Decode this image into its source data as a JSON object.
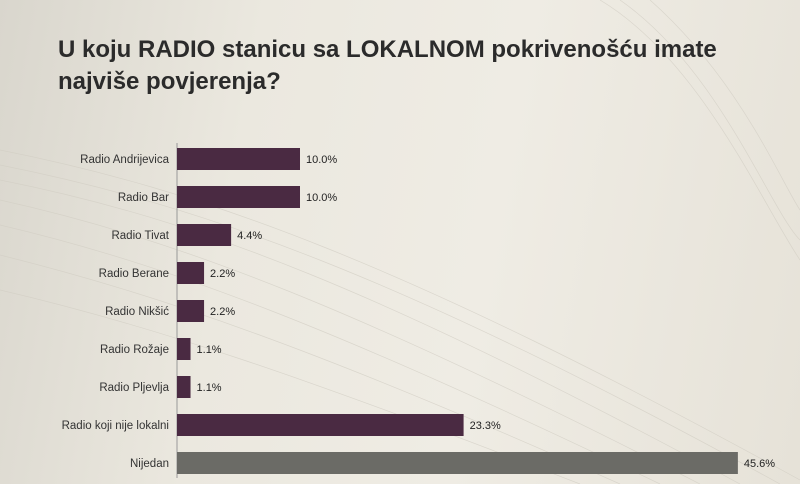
{
  "title": "U koju RADIO stanicu sa LOKALNOM pokrivenošću imate najviše povjerenja?",
  "colors": {
    "bar": "#4a2a42",
    "bar_highlight": "#6b6b66",
    "axis": "#999999"
  },
  "chart_data": {
    "type": "bar",
    "orientation": "horizontal",
    "title": "U koju RADIO stanicu sa LOKALNOM pokrivenošću imate najviše povjerenja?",
    "xlabel": "",
    "ylabel": "",
    "xlim": [
      0,
      50
    ],
    "grid": false,
    "categories": [
      "Radio Andrijevica",
      "Radio Bar",
      "Radio Tivat",
      "Radio Berane",
      "Radio Nikšić",
      "Radio Rožaje",
      "Radio Pljevlja",
      "Radio koji nije lokalni",
      "Nijedan"
    ],
    "values": [
      10.0,
      10.0,
      4.4,
      2.2,
      2.2,
      1.1,
      1.1,
      23.3,
      45.6
    ],
    "value_labels": [
      "10.0%",
      "10.0%",
      "4.4%",
      "2.2%",
      "2.2%",
      "1.1%",
      "1.1%",
      "23.3%",
      "45.6%"
    ]
  }
}
